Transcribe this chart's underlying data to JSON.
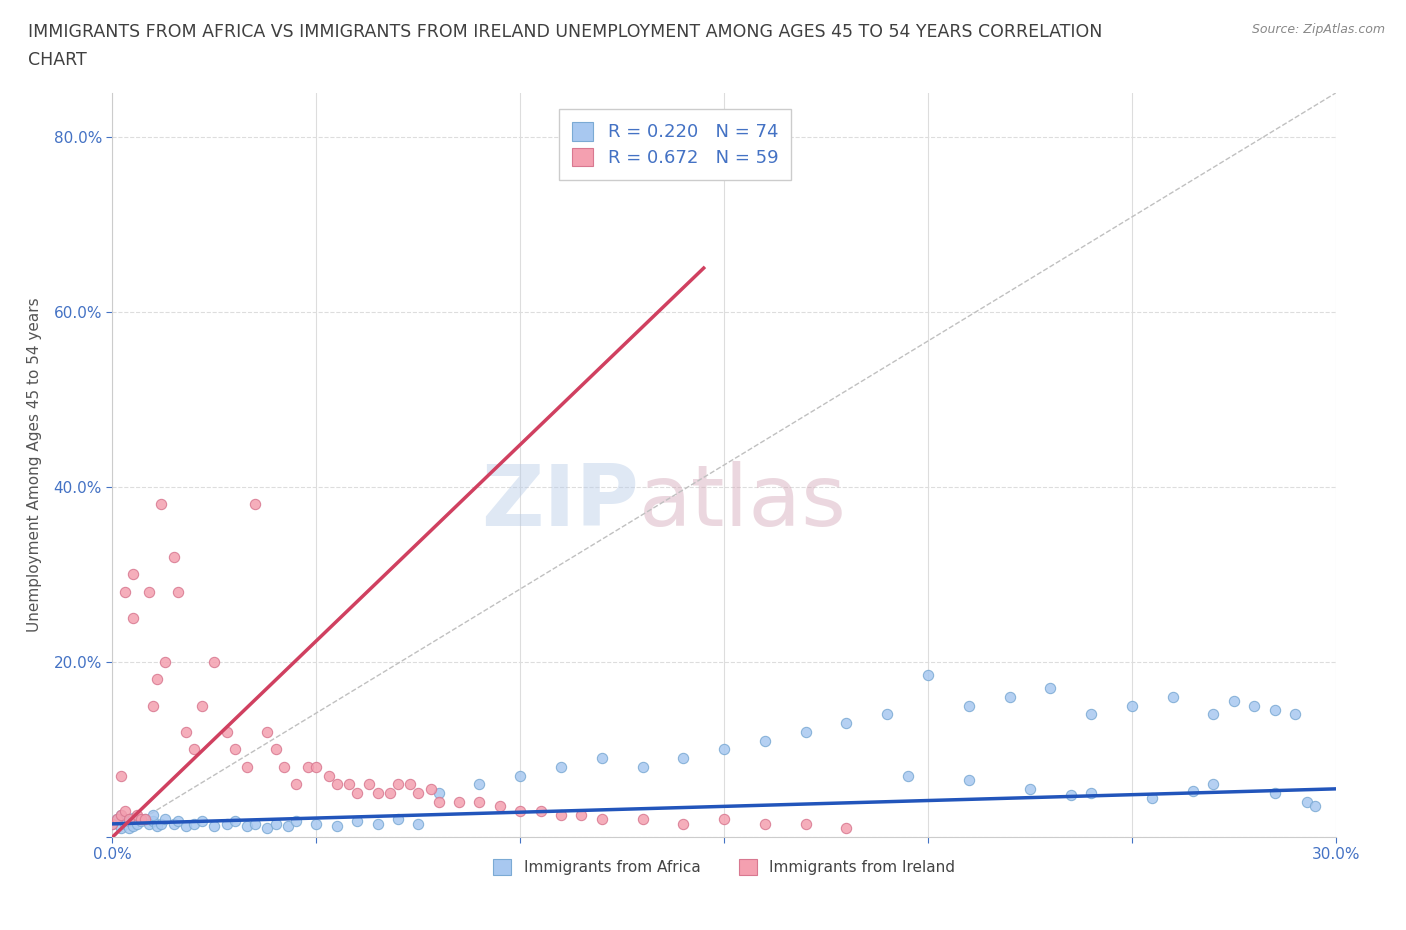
{
  "title_line1": "IMMIGRANTS FROM AFRICA VS IMMIGRANTS FROM IRELAND UNEMPLOYMENT AMONG AGES 45 TO 54 YEARS CORRELATION",
  "title_line2": "CHART",
  "source_text": "Source: ZipAtlas.com",
  "ylabel": "Unemployment Among Ages 45 to 54 years",
  "xlim": [
    0.0,
    0.3
  ],
  "ylim": [
    0.0,
    0.85
  ],
  "xticks": [
    0.0,
    0.05,
    0.1,
    0.15,
    0.2,
    0.25,
    0.3
  ],
  "yticks": [
    0.0,
    0.2,
    0.4,
    0.6,
    0.8
  ],
  "watermark_zip": "ZIP",
  "watermark_atlas": "atlas",
  "africa_color": "#a8c8f0",
  "africa_edge_color": "#7baad4",
  "ireland_color": "#f4a0b0",
  "ireland_edge_color": "#d87890",
  "africa_line_color": "#2255bb",
  "ireland_line_color": "#d04060",
  "tick_color": "#4472c4",
  "legend_label1": "Immigrants from Africa",
  "legend_label2": "Immigrants from Ireland",
  "background_color": "#ffffff",
  "grid_color": "#dddddd",
  "title_color": "#404040",
  "source_color": "#888888",
  "ylabel_color": "#555555",
  "africa_scatter_x": [
    0.0,
    0.001,
    0.002,
    0.002,
    0.003,
    0.003,
    0.004,
    0.004,
    0.005,
    0.005,
    0.006,
    0.007,
    0.008,
    0.009,
    0.01,
    0.01,
    0.011,
    0.012,
    0.013,
    0.015,
    0.016,
    0.018,
    0.02,
    0.022,
    0.025,
    0.028,
    0.03,
    0.033,
    0.035,
    0.038,
    0.04,
    0.043,
    0.045,
    0.05,
    0.055,
    0.06,
    0.065,
    0.07,
    0.075,
    0.08,
    0.09,
    0.1,
    0.11,
    0.12,
    0.13,
    0.14,
    0.15,
    0.16,
    0.17,
    0.18,
    0.19,
    0.2,
    0.21,
    0.22,
    0.23,
    0.24,
    0.25,
    0.26,
    0.27,
    0.275,
    0.28,
    0.285,
    0.29,
    0.293,
    0.295,
    0.285,
    0.27,
    0.255,
    0.24,
    0.225,
    0.21,
    0.195,
    0.235,
    0.265
  ],
  "africa_scatter_y": [
    0.015,
    0.02,
    0.01,
    0.025,
    0.015,
    0.02,
    0.01,
    0.018,
    0.012,
    0.022,
    0.015,
    0.018,
    0.02,
    0.015,
    0.018,
    0.025,
    0.012,
    0.015,
    0.02,
    0.015,
    0.018,
    0.012,
    0.015,
    0.018,
    0.012,
    0.015,
    0.018,
    0.012,
    0.015,
    0.01,
    0.015,
    0.012,
    0.018,
    0.015,
    0.012,
    0.018,
    0.015,
    0.02,
    0.015,
    0.05,
    0.06,
    0.07,
    0.08,
    0.09,
    0.08,
    0.09,
    0.1,
    0.11,
    0.12,
    0.13,
    0.14,
    0.185,
    0.15,
    0.16,
    0.17,
    0.14,
    0.15,
    0.16,
    0.14,
    0.155,
    0.15,
    0.145,
    0.14,
    0.04,
    0.035,
    0.05,
    0.06,
    0.045,
    0.05,
    0.055,
    0.065,
    0.07,
    0.048,
    0.052
  ],
  "ireland_scatter_x": [
    0.0,
    0.001,
    0.002,
    0.002,
    0.003,
    0.003,
    0.004,
    0.005,
    0.005,
    0.006,
    0.007,
    0.008,
    0.009,
    0.01,
    0.011,
    0.012,
    0.013,
    0.015,
    0.016,
    0.018,
    0.02,
    0.022,
    0.025,
    0.028,
    0.03,
    0.033,
    0.035,
    0.038,
    0.04,
    0.042,
    0.045,
    0.048,
    0.05,
    0.053,
    0.055,
    0.058,
    0.06,
    0.063,
    0.065,
    0.068,
    0.07,
    0.073,
    0.075,
    0.078,
    0.08,
    0.085,
    0.09,
    0.095,
    0.1,
    0.105,
    0.11,
    0.115,
    0.12,
    0.13,
    0.14,
    0.15,
    0.16,
    0.17,
    0.18
  ],
  "ireland_scatter_y": [
    0.015,
    0.02,
    0.025,
    0.07,
    0.03,
    0.28,
    0.02,
    0.25,
    0.3,
    0.025,
    0.02,
    0.02,
    0.28,
    0.15,
    0.18,
    0.38,
    0.2,
    0.32,
    0.28,
    0.12,
    0.1,
    0.15,
    0.2,
    0.12,
    0.1,
    0.08,
    0.38,
    0.12,
    0.1,
    0.08,
    0.06,
    0.08,
    0.08,
    0.07,
    0.06,
    0.06,
    0.05,
    0.06,
    0.05,
    0.05,
    0.06,
    0.06,
    0.05,
    0.055,
    0.04,
    0.04,
    0.04,
    0.035,
    0.03,
    0.03,
    0.025,
    0.025,
    0.02,
    0.02,
    0.015,
    0.02,
    0.015,
    0.015,
    0.01
  ],
  "ireland_trend_x": [
    0.0,
    0.145
  ],
  "ireland_trend_y": [
    0.0,
    0.65
  ],
  "africa_trend_x": [
    0.0,
    0.3
  ],
  "africa_trend_y": [
    0.015,
    0.055
  ],
  "diag_line_x": [
    0.0,
    0.3
  ],
  "diag_line_y": [
    0.0,
    0.85
  ]
}
